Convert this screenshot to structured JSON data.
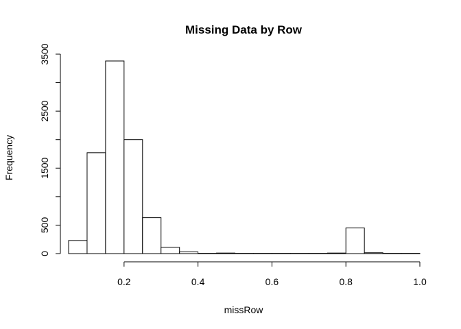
{
  "chart_data": {
    "type": "bar",
    "title": "Missing Data by Row",
    "xlabel": "missRow",
    "ylabel": "Frequency",
    "bin_edges": [
      0.05,
      0.1,
      0.15,
      0.2,
      0.25,
      0.3,
      0.35,
      0.4,
      0.45,
      0.5,
      0.55,
      0.6,
      0.65,
      0.7,
      0.75,
      0.8,
      0.85,
      0.9,
      0.95,
      1.0
    ],
    "values": [
      230,
      1770,
      3380,
      2000,
      630,
      110,
      30,
      5,
      10,
      5,
      5,
      5,
      5,
      5,
      10,
      450,
      15,
      5,
      5
    ],
    "xlim": [
      0.05,
      1.0
    ],
    "ylim": [
      0,
      3500
    ],
    "x_ticks": [
      0.2,
      0.4,
      0.6,
      0.8,
      1.0
    ],
    "x_tick_labels": [
      "0.2",
      "0.4",
      "0.6",
      "0.8",
      "1.0"
    ],
    "y_ticks": [
      0,
      500,
      1500,
      2500,
      3500
    ],
    "y_tick_labels": [
      "0",
      "500",
      "1500",
      "2500",
      "3500"
    ],
    "y_minor_ticks": [
      1000,
      2000,
      3000
    ],
    "grid": false,
    "legend": "none"
  }
}
